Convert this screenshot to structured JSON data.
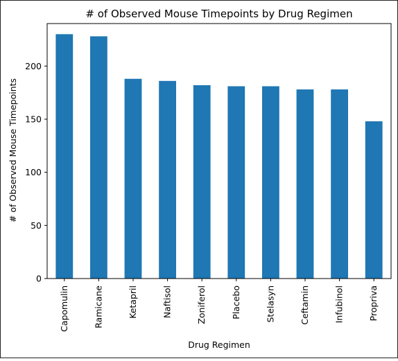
{
  "chart_data": {
    "type": "bar",
    "title": "# of Observed Mouse Timepoints by Drug Regimen",
    "xlabel": "Drug Regimen",
    "ylabel": "# of Observed Mouse Timepoints",
    "categories": [
      "Capomulin",
      "Ramicane",
      "Ketapril",
      "Naftisol",
      "Zoniferol",
      "Placebo",
      "Stelasyn",
      "Ceftamin",
      "Infubinol",
      "Propriva"
    ],
    "values": [
      230,
      228,
      188,
      186,
      182,
      181,
      181,
      178,
      178,
      148
    ],
    "ylim": [
      0,
      240
    ],
    "yticks": [
      0,
      50,
      100,
      150,
      200
    ],
    "bar_color": "#1f77b4",
    "grid": false,
    "legend": "none"
  }
}
